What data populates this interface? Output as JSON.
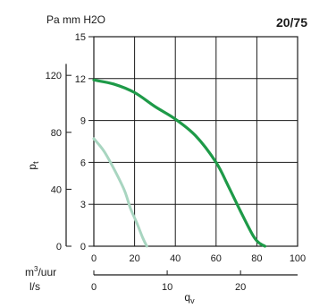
{
  "chart_data": {
    "type": "line",
    "title": "20/75",
    "top_unit_label": "Pa mm H2O",
    "ylabel": "p",
    "ylabel_subscript": "t",
    "xlabel": "q",
    "xlabel_subscript": "v",
    "xlim": [
      0,
      100
    ],
    "ylim_mmH2O": [
      0,
      15
    ],
    "x_ticks_m3h": [
      "0",
      "20",
      "40",
      "60",
      "80",
      "100"
    ],
    "y_ticks_mmH2O": [
      "0",
      "3",
      "6",
      "9",
      "12",
      "15"
    ],
    "y_ticks_Pa": [
      "0",
      "40",
      "80",
      "120"
    ],
    "y_ticks_Pa_values": [
      0,
      40,
      80,
      120
    ],
    "pa_per_mmH2O": 9.81,
    "axis_m3h_label": "m",
    "axis_m3h_superscript": "3",
    "axis_m3h_suffix": "/uur",
    "axis_ls_label": "l/s",
    "x_ticks_ls": [
      "0",
      "10",
      "20"
    ],
    "x_ticks_ls_values": [
      0,
      10,
      20
    ],
    "m3h_per_ls": 3.6,
    "grid": true,
    "colors": {
      "primary": "#1e9a48",
      "secondary": "#a8d5c0",
      "grid": "#1a1a1a"
    },
    "series": [
      {
        "color": "#1e9a48",
        "x": [
          0,
          10,
          20,
          30,
          40,
          50,
          60,
          66,
          72,
          78,
          81,
          84
        ],
        "y": [
          11.9,
          11.6,
          11,
          10,
          9.1,
          7.9,
          6,
          4.3,
          2.5,
          0.8,
          0.25,
          0
        ]
      },
      {
        "color": "#a8d5c0",
        "x": [
          0,
          5,
          10,
          15,
          18,
          21,
          24,
          26
        ],
        "y": [
          7.7,
          6.8,
          5.5,
          4,
          2.7,
          1.7,
          0.6,
          0
        ]
      }
    ]
  }
}
